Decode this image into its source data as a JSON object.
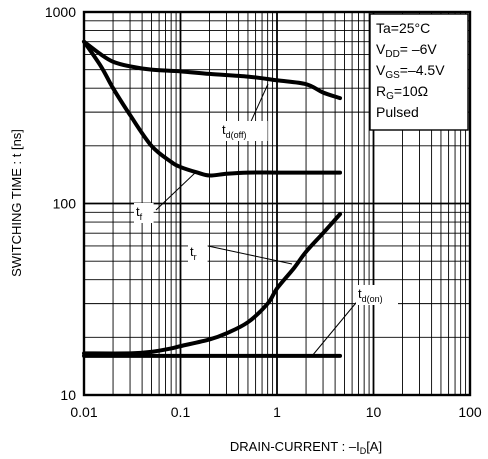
{
  "chart_data": {
    "type": "line",
    "x_scale": "log",
    "y_scale": "log",
    "xlim": [
      0.01,
      100
    ],
    "ylim": [
      10,
      1000
    ],
    "grid": true,
    "xlabel": "DRAIN-CURRENT : –I",
    "xlabel_sub": "D",
    "xlabel_unit": "[A]",
    "ylabel": "SWITCHING TIME : t [ns]",
    "xticks": [
      {
        "value": 0.01,
        "label": "0.01"
      },
      {
        "value": 0.1,
        "label": "0.1"
      },
      {
        "value": 1,
        "label": "1"
      },
      {
        "value": 10,
        "label": "10"
      },
      {
        "value": 100,
        "label": "100"
      }
    ],
    "yticks": [
      {
        "value": 10,
        "label": "10"
      },
      {
        "value": 100,
        "label": "100"
      },
      {
        "value": 1000,
        "label": "1000"
      }
    ],
    "conditions": [
      {
        "main": "Ta=25°C",
        "sub": "",
        "rest": ""
      },
      {
        "main": "V",
        "sub": "DD",
        "rest": "= –6V"
      },
      {
        "main": "V",
        "sub": "GS",
        "rest": "=–4.5V"
      },
      {
        "main": "R",
        "sub": "G",
        "rest": "=10Ω"
      },
      {
        "main": "Pulsed",
        "sub": "",
        "rest": ""
      }
    ],
    "series": [
      {
        "key": "td_off",
        "label_main": "t",
        "label_sub": "d(off)",
        "x": [
          0.01,
          0.015,
          0.02,
          0.03,
          0.05,
          0.1,
          0.2,
          0.5,
          1,
          2,
          3,
          4.5
        ],
        "y": [
          700,
          600,
          550,
          520,
          500,
          490,
          475,
          460,
          440,
          420,
          380,
          355
        ]
      },
      {
        "key": "tf",
        "label_main": "t",
        "label_sub": "f",
        "x": [
          0.01,
          0.015,
          0.02,
          0.03,
          0.05,
          0.08,
          0.1,
          0.15,
          0.2,
          0.3,
          0.5,
          1,
          2,
          4.5
        ],
        "y": [
          700,
          520,
          400,
          290,
          200,
          165,
          155,
          145,
          140,
          143,
          145,
          145,
          145,
          145
        ]
      },
      {
        "key": "tr",
        "label_main": "t",
        "label_sub": "r",
        "x": [
          0.01,
          0.03,
          0.05,
          0.08,
          0.1,
          0.2,
          0.3,
          0.5,
          0.8,
          1,
          1.5,
          2,
          3,
          4.5
        ],
        "y": [
          16.5,
          16.5,
          16.8,
          17.5,
          18,
          19.5,
          21,
          24,
          30,
          36,
          46,
          56,
          70,
          88
        ]
      },
      {
        "key": "td_on",
        "label_main": "t",
        "label_sub": "d(on)",
        "x": [
          0.01,
          4.5
        ],
        "y": [
          16,
          16
        ]
      }
    ]
  }
}
